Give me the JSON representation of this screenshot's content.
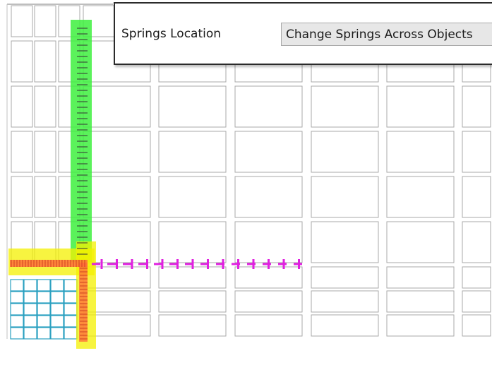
{
  "properties_panel": {
    "field_label": "Springs Location",
    "field_value": "Change Springs Across Objects"
  },
  "colors": {
    "grid_line": "#a9a9a9",
    "cyan_grid": "#2aa0c0",
    "vertical_highlight": "#3ef03e",
    "corner_highlight": "#f4f000",
    "springs_orange": "#ff6a3a",
    "springs_magenta": "#e020e0",
    "tick_dark": "#333333"
  },
  "icons": [
    "dropdown-field",
    "grid-cell",
    "spring-marker"
  ]
}
